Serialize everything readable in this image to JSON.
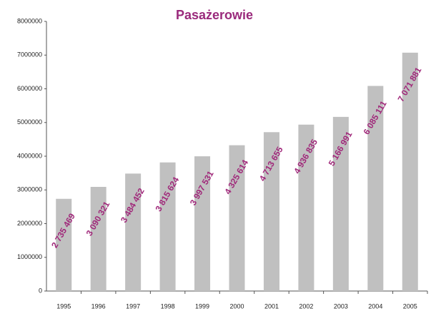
{
  "chart_data": {
    "type": "bar",
    "title": "Pasażerowie",
    "categories": [
      "1995",
      "1996",
      "1997",
      "1998",
      "1999",
      "2000",
      "2001",
      "2002",
      "2003",
      "2004",
      "2005"
    ],
    "values": [
      2735469,
      3090321,
      3484452,
      3815624,
      3997531,
      4325614,
      4713655,
      4936835,
      5166991,
      6085111,
      7071881
    ],
    "value_labels": [
      "2 735 469",
      "3 090 321",
      "3 484 452",
      "3 815 624",
      "3 997 531",
      "4 325 614",
      "4 713 655",
      "4 936 835",
      "5 166 991",
      "6 085 111",
      "7 071 881"
    ],
    "color": "#c0c0c0",
    "label_color": "#a0287a",
    "ylim": [
      0,
      8000000
    ],
    "yticks": [
      0,
      1000000,
      2000000,
      3000000,
      4000000,
      5000000,
      6000000,
      7000000,
      8000000
    ],
    "grid": false
  }
}
